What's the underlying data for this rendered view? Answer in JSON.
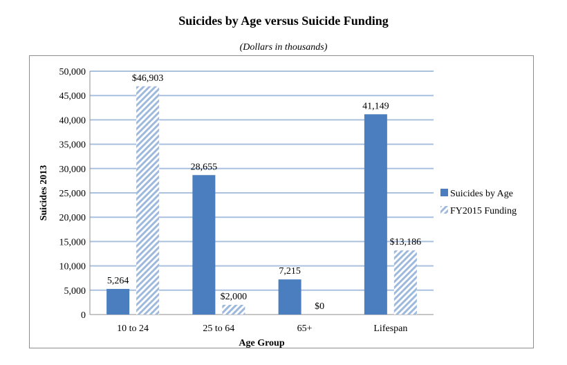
{
  "chart_data": {
    "type": "bar",
    "title": "Suicides by Age versus Suicide Funding",
    "subtitle": "(Dollars in thousands)",
    "xlabel": "Age Group",
    "ylabel": "Suicides 2013",
    "ylim": [
      0,
      50000
    ],
    "yticks": [
      "0",
      "5,000",
      "10,000",
      "15,000",
      "20,000",
      "25,000",
      "30,000",
      "35,000",
      "40,000",
      "45,000",
      "50,000"
    ],
    "ytick_values": [
      0,
      5000,
      10000,
      15000,
      20000,
      25000,
      30000,
      35000,
      40000,
      45000,
      50000
    ],
    "grid": true,
    "legend_position": "right",
    "categories": [
      "10 to 24",
      "25 to 64",
      "65+",
      "Lifespan"
    ],
    "series": [
      {
        "name": "Suicides by Age",
        "values": [
          5264,
          28655,
          7215,
          41149
        ],
        "labels": [
          "5,264",
          "28,655",
          "7,215",
          "41,149"
        ],
        "color": "#4a7ebf",
        "pattern": "solid"
      },
      {
        "name": "FY2015 Funding",
        "values": [
          46903,
          2000,
          0,
          13186
        ],
        "labels": [
          "$46,903",
          "$2,000",
          "$0",
          "$13,186"
        ],
        "color": "#9db9dd",
        "pattern": "diagonal-stripes"
      }
    ]
  }
}
